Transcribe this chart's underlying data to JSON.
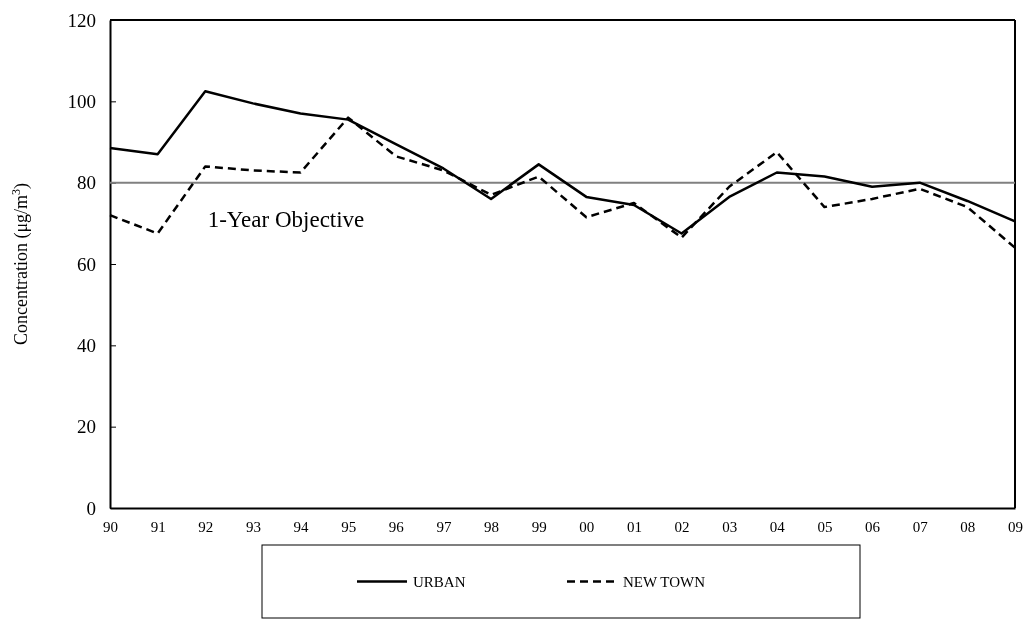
{
  "chart_data": {
    "type": "line",
    "ylabel": "Concentration (μg/m$^{3}$)",
    "categories": [
      "90",
      "91",
      "92",
      "93",
      "94",
      "95",
      "96",
      "97",
      "98",
      "99",
      "00",
      "01",
      "02",
      "03",
      "04",
      "05",
      "06",
      "07",
      "08",
      "09"
    ],
    "series": [
      {
        "name": "URBAN",
        "color": "#000000",
        "line_style": "solid",
        "values": [
          88.5,
          87,
          102.5,
          99.5,
          97,
          95.5,
          89.5,
          83.5,
          76,
          84.5,
          76.5,
          74.5,
          67.5,
          76.5,
          82.5,
          81.5,
          79,
          80,
          75.5,
          70.5
        ]
      },
      {
        "name": "NEW TOWN",
        "color": "#000000",
        "line_style": "dashed",
        "values": [
          72,
          67.5,
          84,
          83,
          82.5,
          96,
          86.5,
          83,
          77,
          81.5,
          71.5,
          75,
          66.5,
          79,
          87.5,
          74,
          76,
          78.5,
          74,
          64
        ]
      }
    ],
    "ylim": [
      0,
      120
    ],
    "yticks": [
      0,
      20,
      40,
      60,
      80,
      100,
      120
    ],
    "grid": false,
    "legend": "bottom",
    "marker": "none",
    "ref_lines": [
      {
        "axis": "y",
        "value": 80,
        "label": "1-Year Objective",
        "color": "#808080"
      }
    ]
  }
}
